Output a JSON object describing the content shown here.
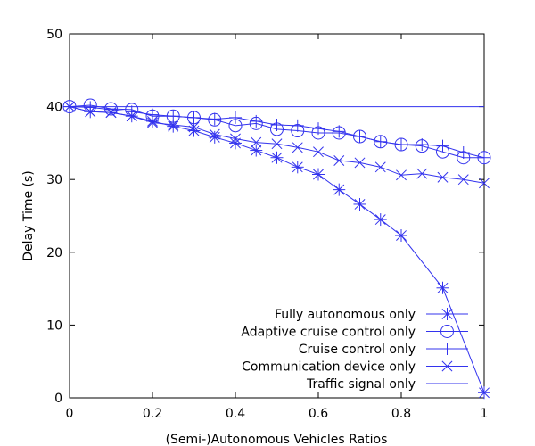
{
  "chart_data": {
    "type": "line",
    "title": "",
    "xlabel": "(Semi-)Autonomous Vehicles Ratios",
    "ylabel": "Delay Time (s)",
    "xlim": [
      0,
      1
    ],
    "ylim": [
      0,
      50
    ],
    "xticks": [
      0,
      0.2,
      0.4,
      0.6,
      0.8,
      1
    ],
    "xtick_labels": [
      "0",
      "0.2",
      "0.4",
      "0.6",
      "0.8",
      "1"
    ],
    "yticks": [
      0,
      10,
      20,
      30,
      40,
      50
    ],
    "ytick_labels": [
      "0",
      "10",
      "20",
      "30",
      "40",
      "50"
    ],
    "grid": false,
    "legend_position": "bottom-right",
    "color": "#3333ee",
    "x": [
      0,
      0.05,
      0.1,
      0.15,
      0.2,
      0.25,
      0.3,
      0.35,
      0.4,
      0.45,
      0.5,
      0.55,
      0.6,
      0.65,
      0.7,
      0.75,
      0.8,
      0.85,
      0.9,
      0.95,
      1
    ],
    "series": [
      {
        "name": "Fully autonomous only",
        "marker": "star",
        "values": [
          40,
          39.3,
          39.2,
          38.7,
          38.0,
          37.3,
          36.7,
          35.8,
          35.0,
          34.0,
          33.0,
          31.7,
          30.7,
          28.6,
          26.6,
          24.5,
          22.3,
          null,
          15.1,
          null,
          0.7
        ]
      },
      {
        "name": "Adaptive cruise control only",
        "marker": "circle",
        "values": [
          40,
          40.2,
          39.7,
          39.6,
          38.7,
          38.7,
          38.5,
          38.2,
          37.4,
          37.7,
          36.9,
          36.7,
          36.4,
          36.4,
          35.9,
          35.2,
          34.8,
          34.6,
          33.8,
          33.0,
          33.0
        ]
      },
      {
        "name": "Cruise control only",
        "marker": "plus",
        "values": [
          40,
          39.9,
          39.6,
          39.3,
          38.9,
          38.7,
          38.5,
          38.3,
          38.5,
          38.0,
          37.5,
          37.4,
          37.0,
          36.6,
          35.9,
          35.2,
          34.8,
          34.8,
          34.6,
          33.7,
          33.0
        ]
      },
      {
        "name": "Communication device only",
        "marker": "cross",
        "values": [
          40,
          39.3,
          39.2,
          38.7,
          37.8,
          37.5,
          37.2,
          36.2,
          35.6,
          35.1,
          34.9,
          34.4,
          33.8,
          32.6,
          32.3,
          31.7,
          30.6,
          30.8,
          30.3,
          30.0,
          29.5
        ]
      },
      {
        "name": "Traffic signal only",
        "marker": "none",
        "values": [
          40,
          40,
          40,
          40,
          40,
          40,
          40,
          40,
          40,
          40,
          40,
          40,
          40,
          40,
          40,
          40,
          40,
          40,
          40,
          40,
          40
        ]
      }
    ]
  }
}
